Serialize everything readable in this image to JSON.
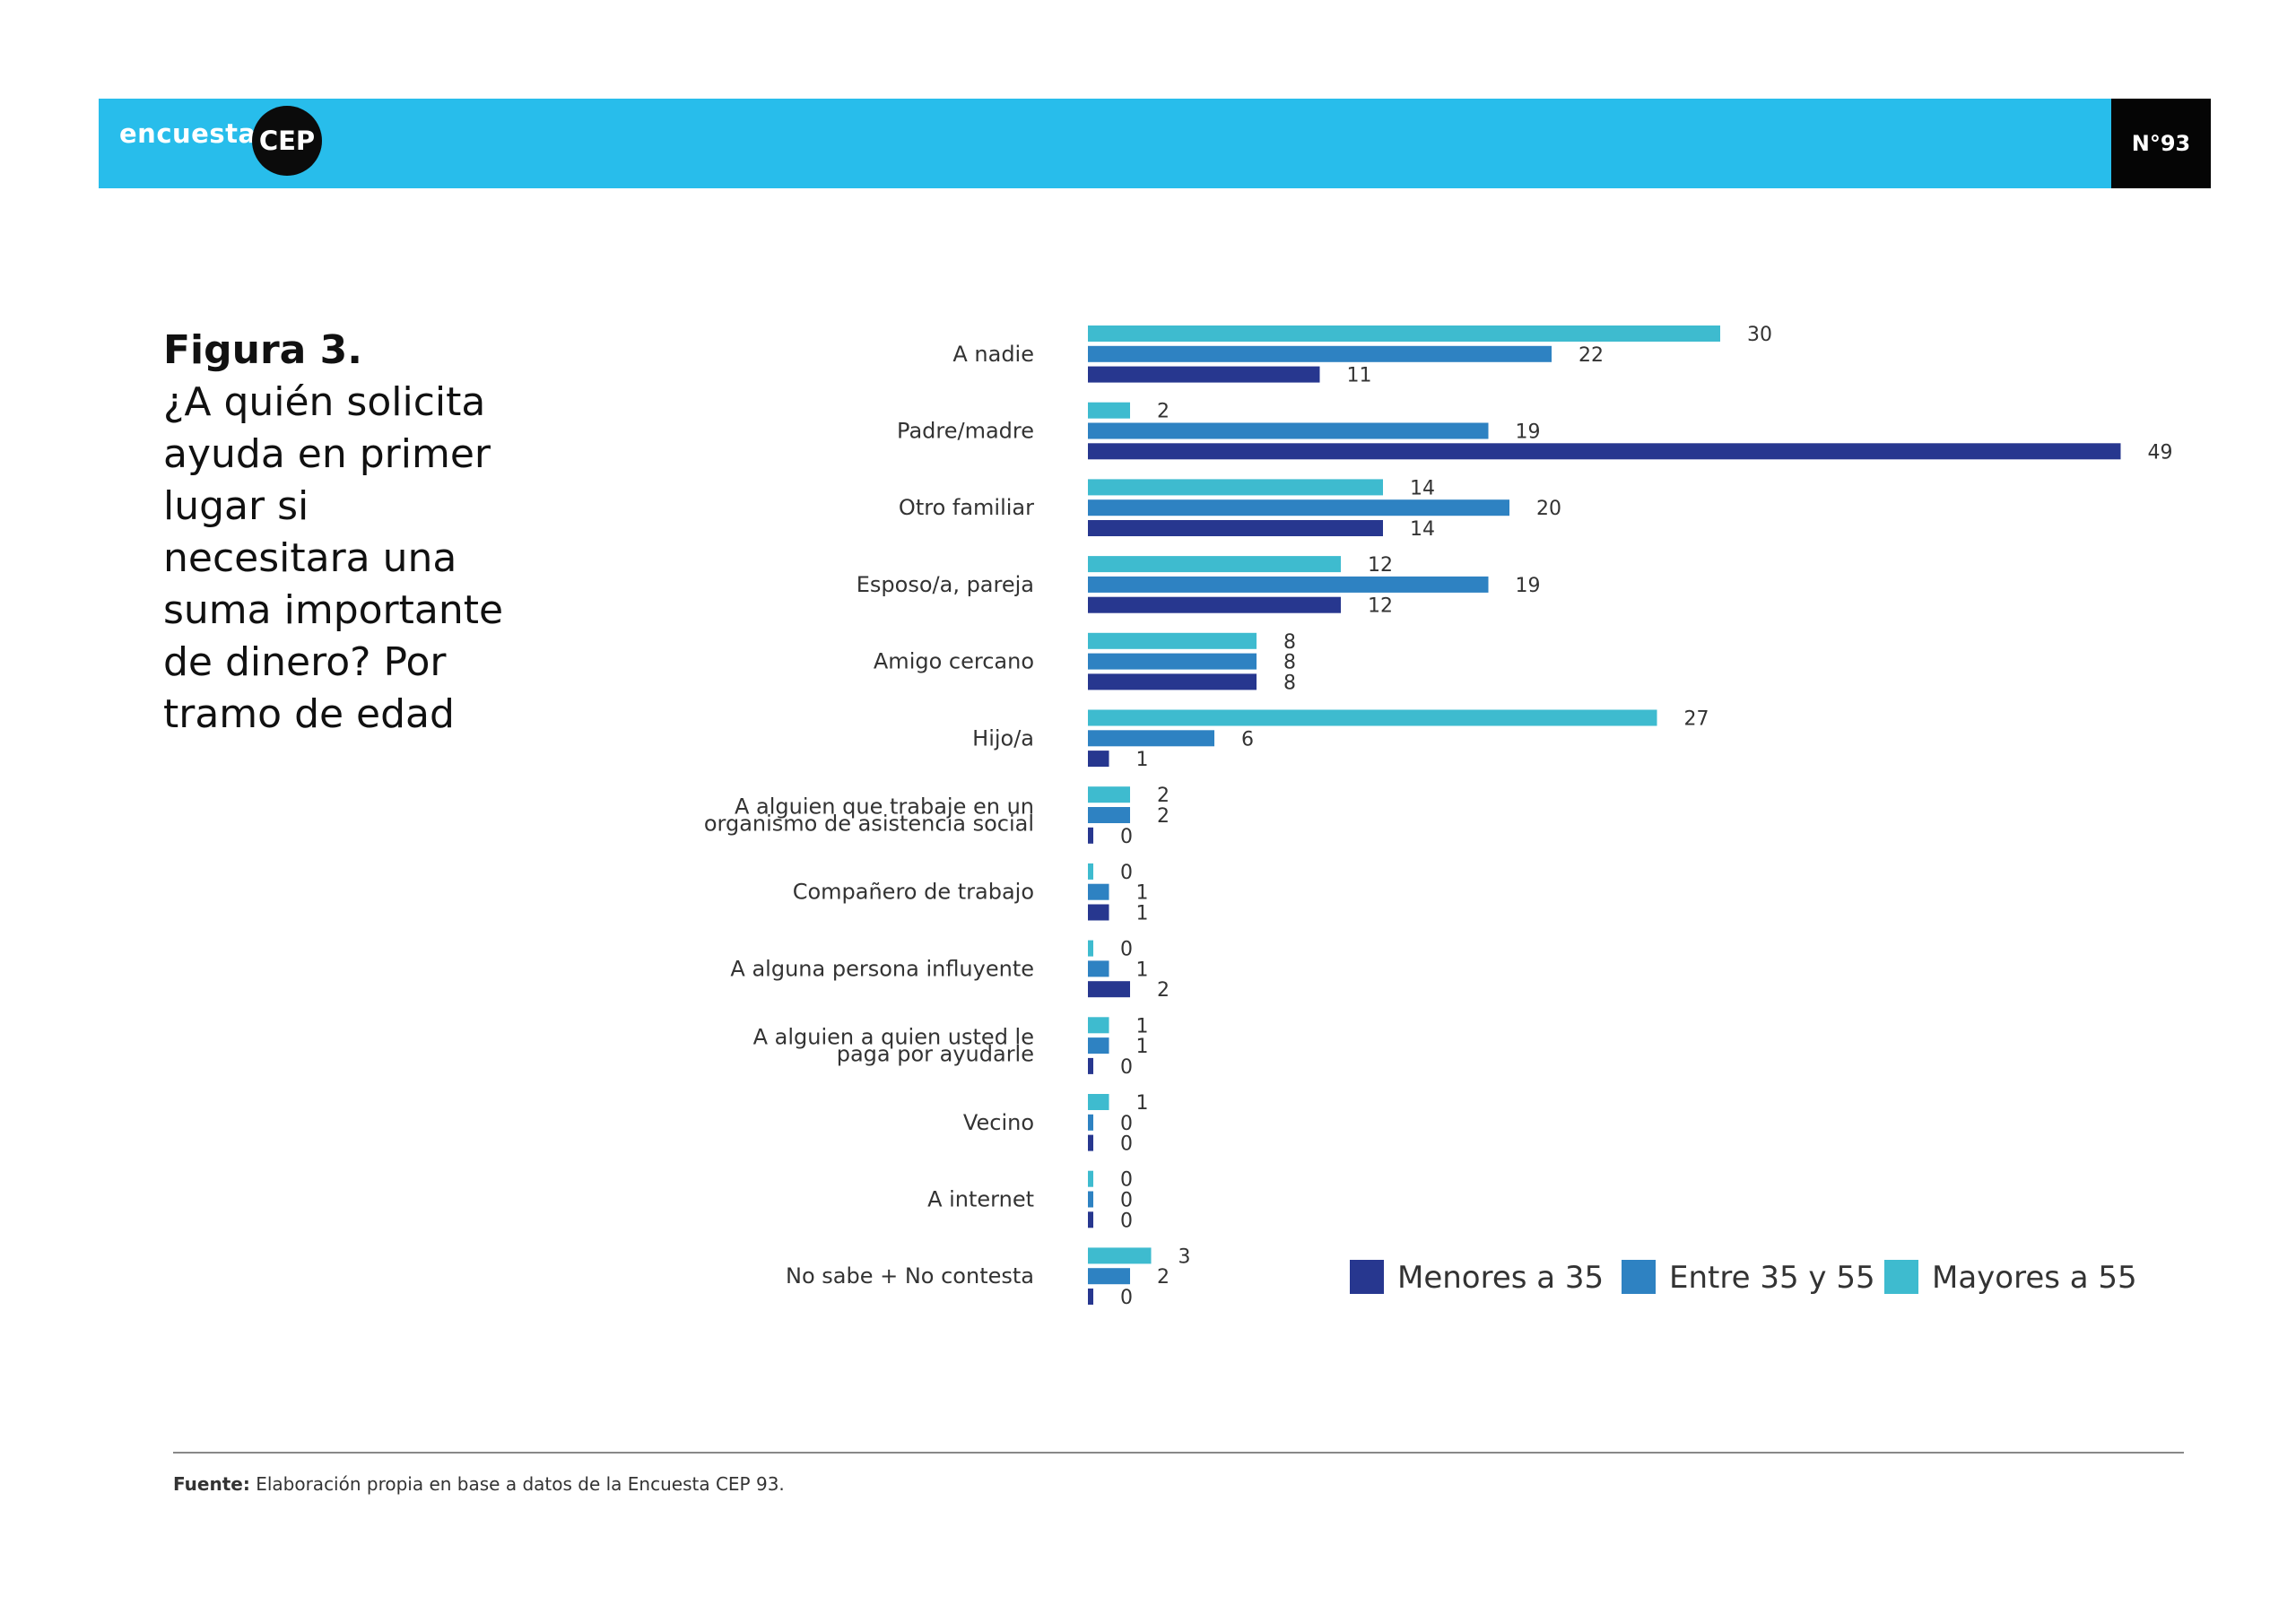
{
  "header": {
    "brand_word": "encuesta",
    "brand_badge": "CEP",
    "issue": "N°93",
    "banner_color": "#28bdeb"
  },
  "figure": {
    "number": "Figura 3.",
    "title": "¿A quién solicita ayuda en primer lugar si necesitara una suma importante de dinero? Por tramo de edad"
  },
  "chart_data": {
    "type": "bar",
    "orientation": "horizontal",
    "categories": [
      [
        "A nadie"
      ],
      [
        "Padre/madre"
      ],
      [
        "Otro familiar"
      ],
      [
        "Esposo/a, pareja"
      ],
      [
        "Amigo cercano"
      ],
      [
        "Hijo/a"
      ],
      [
        "A alguien que trabaje en un",
        "organismo de asistencia social"
      ],
      [
        "Compañero de trabajo"
      ],
      [
        "A alguna persona influyente"
      ],
      [
        "A alguien a quien usted le",
        "paga por ayudarle"
      ],
      [
        "Vecino"
      ],
      [
        "A internet"
      ],
      [
        "No sabe + No contesta"
      ]
    ],
    "series": [
      {
        "name": "Mayores a 55",
        "color": "#3ebbcf",
        "values": [
          30,
          2,
          14,
          12,
          8,
          27,
          2,
          0,
          0,
          1,
          1,
          0,
          3
        ]
      },
      {
        "name": "Entre 35 y 55",
        "color": "#2e82c2",
        "values": [
          22,
          19,
          20,
          19,
          8,
          6,
          2,
          1,
          1,
          1,
          0,
          0,
          2
        ]
      },
      {
        "name": "Menores a 35",
        "color": "#27378f",
        "values": [
          11,
          49,
          14,
          12,
          8,
          1,
          0,
          1,
          2,
          0,
          0,
          0,
          0
        ]
      }
    ],
    "legend": [
      "Menores a 35",
      "Entre 35 y 55",
      "Mayores a 55"
    ],
    "legend_colors": [
      "#27378f",
      "#2e82c2",
      "#3ebbcf"
    ],
    "legend_position": "bottom-right",
    "axis_visible": false,
    "grid": false
  },
  "footer": {
    "source_label": "Fuente:",
    "source_text": "Elaboración propia en base a datos de la Encuesta CEP 93."
  }
}
